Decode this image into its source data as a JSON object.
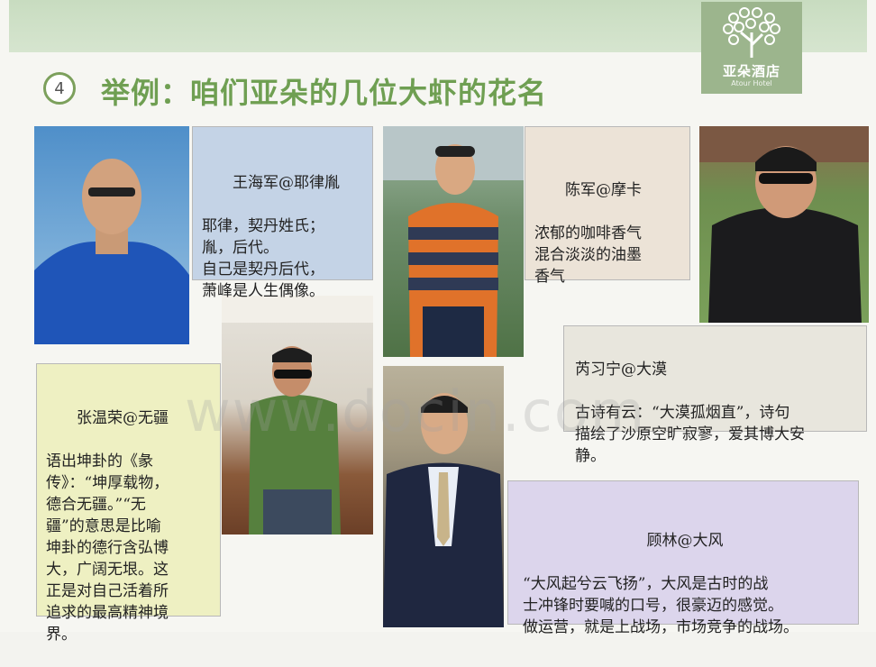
{
  "logo": {
    "name": "亚朵酒店",
    "sub": "Atour Hotel"
  },
  "heading": {
    "number": "4",
    "title": "举例：咱们亚朵的几位大虾的花名"
  },
  "cards": [
    {
      "title": "王海军@耶律胤",
      "body": "耶律，契丹姓氏；\n胤，后代。\n自己是契丹后代，\n萧峰是人生偶像。"
    },
    {
      "title": "陈军@摩卡",
      "body": "浓郁的咖啡香气\n混合淡淡的油墨\n香气"
    },
    {
      "title": "张温荣@无疆",
      "body": "语出坤卦的《彖\n传》：“坤厚载物，\n德合无疆。”“无\n疆”的意思是比喻\n坤卦的德行含弘博\n大，广阔无垠。这\n正是对自己活着所\n追求的最高精神境\n界。"
    },
    {
      "title": "芮习宁@大漠",
      "body": "古诗有云：“大漠孤烟直”，诗句\n描绘了沙原空旷寂寥，爱其博大安\n静。"
    },
    {
      "title": "顾林@大风",
      "body": "“大风起兮云飞扬”，大风是古时的战\n士冲锋时要喊的口号，很豪迈的感觉。\n做运营，就是上战场，市场竞争的战场。"
    }
  ],
  "watermark": "www.docin.com"
}
